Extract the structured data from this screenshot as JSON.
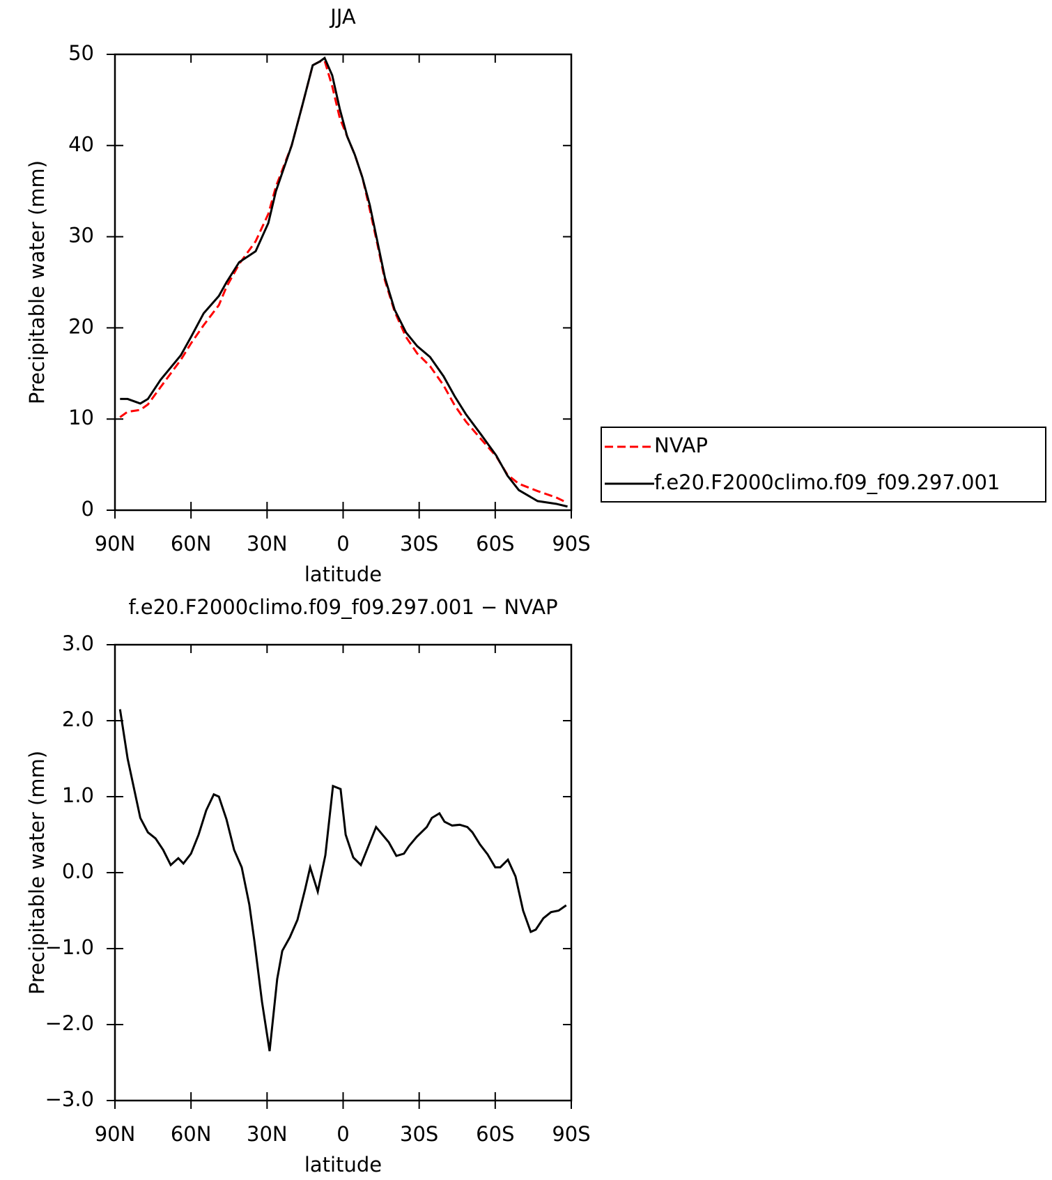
{
  "chart_data": [
    {
      "type": "line",
      "title": "JJA",
      "xlabel": "latitude",
      "ylabel": "Precipitable water (mm)",
      "xlim": [
        90,
        -90
      ],
      "xticks": [
        {
          "value": 90,
          "label": "90N"
        },
        {
          "value": 60,
          "label": "60N"
        },
        {
          "value": 30,
          "label": "30N"
        },
        0,
        {
          "value": -30,
          "label": "30S"
        },
        {
          "value": -60,
          "label": "60S"
        },
        {
          "value": -90,
          "label": "90S"
        }
      ],
      "ylim": [
        0,
        50
      ],
      "yticks": [
        0,
        10,
        20,
        30,
        40,
        50
      ],
      "legend": "right",
      "x": [
        88,
        85,
        80,
        77,
        72,
        64,
        60,
        55,
        49,
        46,
        41,
        34.5,
        29.5,
        26.5,
        20.3,
        16,
        12,
        9.3,
        7.3,
        4.3,
        1.3,
        -1.6,
        -4.6,
        -7.6,
        -10.5,
        -13.5,
        -16.5,
        -20.3,
        -24.8,
        -29.2,
        -34.3,
        -39.6,
        -44,
        -48.5,
        -54.4,
        -60.4,
        -64.8,
        -69.3,
        -76.7,
        -84,
        -88.5
      ],
      "series": [
        {
          "name": "NVAP",
          "color": "#ff0000",
          "line_style": "dashed",
          "values": [
            10.2,
            10.8,
            11.0,
            11.6,
            13.5,
            16.5,
            18.3,
            20.3,
            22.5,
            24.5,
            27.0,
            29.5,
            32.5,
            35.5,
            40,
            44.5,
            48.8,
            49.2,
            49.3,
            46.5,
            43,
            41,
            39,
            36.5,
            33,
            29.2,
            25.2,
            21.8,
            19,
            17.2,
            15.8,
            13.7,
            11.5,
            9.7,
            7.8,
            5.9,
            3.9,
            2.9,
            2.1,
            1.4,
            0.8
          ]
        },
        {
          "name": "f.e20.F2000climo.f09_f09.297.001",
          "color": "#000000",
          "line_style": "solid",
          "values": [
            12.2,
            12.2,
            11.7,
            12.2,
            14.3,
            17,
            19,
            21.6,
            23.5,
            25,
            27.2,
            28.4,
            31.5,
            35,
            40,
            44.5,
            48.8,
            49.2,
            49.6,
            47.7,
            44,
            41,
            39,
            36.5,
            33.5,
            29.5,
            25.5,
            22,
            19.5,
            18,
            16.8,
            14.7,
            12.5,
            10.5,
            8.3,
            6,
            3.8,
            2.2,
            1,
            0.7,
            0.4
          ]
        }
      ]
    },
    {
      "type": "line",
      "title": "f.e20.F2000climo.f09_f09.297.001 − NVAP",
      "xlabel": "latitude",
      "ylabel": "Precipitable water (mm)",
      "xlim": [
        90,
        -90
      ],
      "xticks": [
        {
          "value": 90,
          "label": "90N"
        },
        {
          "value": 60,
          "label": "60N"
        },
        {
          "value": 30,
          "label": "30N"
        },
        0,
        {
          "value": -30,
          "label": "30S"
        },
        {
          "value": -60,
          "label": "60S"
        },
        {
          "value": -90,
          "label": "90S"
        }
      ],
      "ylim": [
        -3,
        3
      ],
      "yticks": [
        {
          "value": -3,
          "label": "−3.0"
        },
        {
          "value": -2,
          "label": "−2.0"
        },
        {
          "value": -1,
          "label": "−1.0"
        },
        {
          "value": 0,
          "label": "0.0"
        },
        {
          "value": 1,
          "label": "1.0"
        },
        {
          "value": 2,
          "label": "2.0"
        },
        {
          "value": 3,
          "label": "3.0"
        }
      ],
      "x": [
        88,
        85,
        80,
        77,
        74,
        71,
        68,
        65,
        63,
        60,
        57,
        54,
        51,
        49,
        46,
        43,
        40,
        37,
        35,
        32,
        29,
        26,
        24,
        21,
        18,
        15,
        13,
        10,
        7,
        4,
        1,
        -1,
        -4,
        -7,
        -13,
        -18,
        -21,
        -24,
        -26,
        -29,
        -33,
        -35,
        -38,
        -40,
        -43,
        -46,
        -49,
        -51,
        -54,
        -57,
        -60,
        -62,
        -65,
        -68,
        -71,
        -74,
        -76,
        -79,
        -82,
        -85,
        -88
      ],
      "series": [
        {
          "color": "#000000",
          "line_style": "solid",
          "values": [
            2.15,
            1.5,
            0.72,
            0.53,
            0.45,
            0.3,
            0.1,
            0.19,
            0.12,
            0.25,
            0.5,
            0.82,
            1.03,
            1.0,
            0.7,
            0.3,
            0.07,
            -0.42,
            -0.9,
            -1.7,
            -2.35,
            -1.4,
            -1.03,
            -0.85,
            -0.62,
            -0.22,
            0.07,
            -0.25,
            0.23,
            1.14,
            1.1,
            0.5,
            0.2,
            0.1,
            0.6,
            0.4,
            0.22,
            0.25,
            0.35,
            0.47,
            0.6,
            0.72,
            0.78,
            0.67,
            0.62,
            0.63,
            0.6,
            0.53,
            0.37,
            0.24,
            0.07,
            0.07,
            0.17,
            -0.05,
            -0.5,
            -0.78,
            -0.75,
            -0.6,
            -0.52,
            -0.5,
            -0.43
          ]
        }
      ]
    }
  ]
}
